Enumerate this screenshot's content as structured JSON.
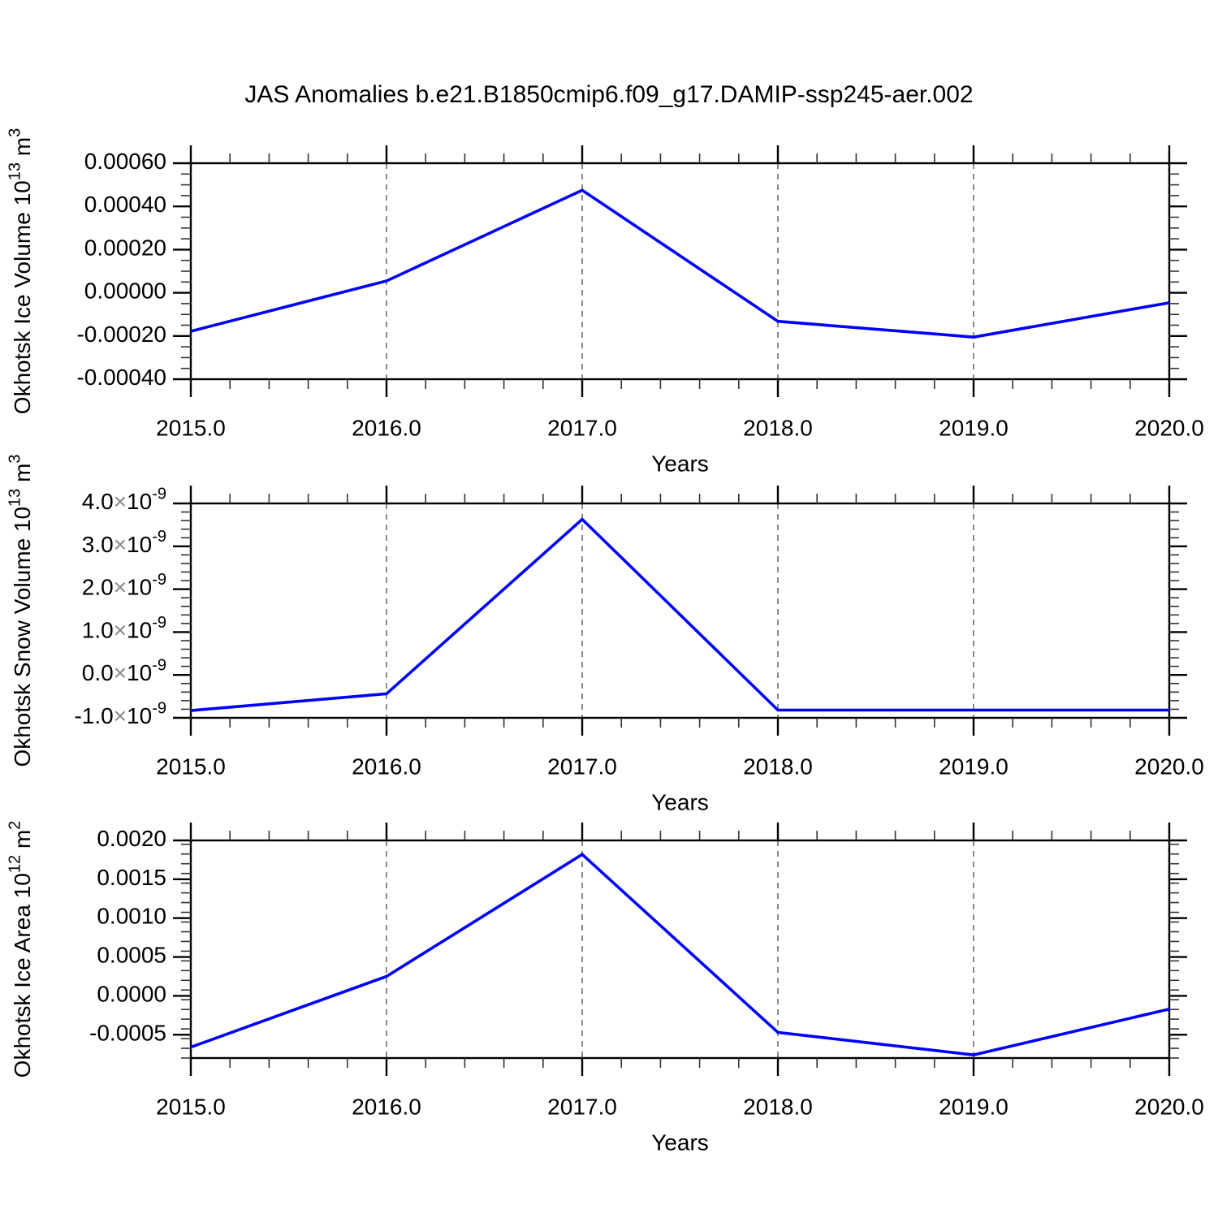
{
  "title": "JAS Anomalies b.e21.B1850cmip6.f09_g17.DAMIP-ssp245-aer.002",
  "colors": {
    "line": "#0000ff",
    "grid": "#808080",
    "frame": "#000000",
    "minor_tick": "#333333",
    "text": "#000000",
    "times_sign": "#888888"
  },
  "chart_data": [
    {
      "type": "line",
      "name": "okhotsk-ice-volume",
      "x": [
        2015.0,
        2016.0,
        2017.0,
        2018.0,
        2019.0,
        2020.0
      ],
      "values": [
        -0.000178,
        5.5e-05,
        0.000475,
        -0.000132,
        -0.000205,
        -4.6e-05
      ],
      "xlabel": "Years",
      "ylabel_parts": [
        {
          "t": "Okhotsk Ice Volume 10"
        },
        {
          "t": "13",
          "sup": true
        },
        {
          "t": " m"
        },
        {
          "t": "3",
          "sup": true
        }
      ],
      "xlim": [
        2015.0,
        2020.0
      ],
      "ylim": [
        -0.0004,
        0.0006
      ],
      "grid": "vertical-dashed",
      "gridlines_x": [
        2016.0,
        2017.0,
        2018.0,
        2019.0
      ],
      "legend": "none",
      "yticks": [
        {
          "v": 0.0006,
          "parts": [
            {
              "t": "0.00060"
            }
          ]
        },
        {
          "v": 0.0004,
          "parts": [
            {
              "t": "0.00040"
            }
          ]
        },
        {
          "v": 0.0002,
          "parts": [
            {
              "t": "0.00020"
            }
          ]
        },
        {
          "v": 0.0,
          "parts": [
            {
              "t": "0.00000"
            }
          ]
        },
        {
          "v": -0.0002,
          "parts": [
            {
              "t": "-0.00020"
            }
          ]
        },
        {
          "v": -0.0004,
          "parts": [
            {
              "t": "-0.00040"
            }
          ]
        }
      ],
      "yminor_step": 5e-05,
      "xticks": [
        {
          "v": 2015.0,
          "label": "2015.0"
        },
        {
          "v": 2016.0,
          "label": "2016.0"
        },
        {
          "v": 2017.0,
          "label": "2017.0"
        },
        {
          "v": 2018.0,
          "label": "2018.0"
        },
        {
          "v": 2019.0,
          "label": "2019.0"
        },
        {
          "v": 2020.0,
          "label": "2020.0"
        }
      ],
      "xminor_step": 0.2
    },
    {
      "type": "line",
      "name": "okhotsk-snow-volume",
      "x": [
        2015.0,
        2016.0,
        2017.0,
        2018.0,
        2019.0,
        2020.0
      ],
      "values": [
        -8.3e-10,
        -4.4e-10,
        3.63e-09,
        -8.2e-10,
        -8.2e-10,
        -8.2e-10
      ],
      "xlabel": "Years",
      "ylabel_parts": [
        {
          "t": "Okhotsk Snow Volume 10"
        },
        {
          "t": "13",
          "sup": true
        },
        {
          "t": " m"
        },
        {
          "t": "3",
          "sup": true
        }
      ],
      "xlim": [
        2015.0,
        2020.0
      ],
      "ylim": [
        -1e-09,
        4e-09
      ],
      "grid": "vertical-dashed",
      "gridlines_x": [
        2016.0,
        2017.0,
        2018.0,
        2019.0
      ],
      "legend": "none",
      "yticks": [
        {
          "v": 4e-09,
          "parts": [
            {
              "t": "4.0"
            },
            {
              "t": "×",
              "times": true
            },
            {
              "t": "10"
            },
            {
              "t": "-9",
              "sup": true
            }
          ]
        },
        {
          "v": 3e-09,
          "parts": [
            {
              "t": "3.0"
            },
            {
              "t": "×",
              "times": true
            },
            {
              "t": "10"
            },
            {
              "t": "-9",
              "sup": true
            }
          ]
        },
        {
          "v": 2e-09,
          "parts": [
            {
              "t": "2.0"
            },
            {
              "t": "×",
              "times": true
            },
            {
              "t": "10"
            },
            {
              "t": "-9",
              "sup": true
            }
          ]
        },
        {
          "v": 1e-09,
          "parts": [
            {
              "t": "1.0"
            },
            {
              "t": "×",
              "times": true
            },
            {
              "t": "10"
            },
            {
              "t": "-9",
              "sup": true
            }
          ]
        },
        {
          "v": 0.0,
          "parts": [
            {
              "t": "0.0"
            },
            {
              "t": "×",
              "times": true
            },
            {
              "t": "10"
            },
            {
              "t": "-9",
              "sup": true
            }
          ]
        },
        {
          "v": -1e-09,
          "parts": [
            {
              "t": "-1.0"
            },
            {
              "t": "×",
              "times": true
            },
            {
              "t": "10"
            },
            {
              "t": "-9",
              "sup": true
            }
          ]
        }
      ],
      "yminor_step": 2e-10,
      "xticks": [
        {
          "v": 2015.0,
          "label": "2015.0"
        },
        {
          "v": 2016.0,
          "label": "2016.0"
        },
        {
          "v": 2017.0,
          "label": "2017.0"
        },
        {
          "v": 2018.0,
          "label": "2018.0"
        },
        {
          "v": 2019.0,
          "label": "2019.0"
        },
        {
          "v": 2020.0,
          "label": "2020.0"
        }
      ],
      "xminor_step": 0.2
    },
    {
      "type": "line",
      "name": "okhotsk-ice-area",
      "x": [
        2015.0,
        2016.0,
        2017.0,
        2018.0,
        2019.0,
        2020.0
      ],
      "values": [
        -0.00066,
        0.00025,
        0.00182,
        -0.00047,
        -0.00076,
        -0.00017
      ],
      "xlabel": "Years",
      "ylabel_parts": [
        {
          "t": "Okhotsk Ice Area 10"
        },
        {
          "t": "12",
          "sup": true
        },
        {
          "t": " m"
        },
        {
          "t": "2",
          "sup": true
        }
      ],
      "xlim": [
        2015.0,
        2020.0
      ],
      "ylim": [
        -0.0008,
        0.002
      ],
      "grid": "vertical-dashed",
      "gridlines_x": [
        2016.0,
        2017.0,
        2018.0,
        2019.0
      ],
      "legend": "none",
      "yticks": [
        {
          "v": 0.002,
          "parts": [
            {
              "t": "0.0020"
            }
          ]
        },
        {
          "v": 0.0015,
          "parts": [
            {
              "t": "0.0015"
            }
          ]
        },
        {
          "v": 0.001,
          "parts": [
            {
              "t": "0.0010"
            }
          ]
        },
        {
          "v": 0.0005,
          "parts": [
            {
              "t": "0.0005"
            }
          ]
        },
        {
          "v": 0.0,
          "parts": [
            {
              "t": "0.0000"
            }
          ]
        },
        {
          "v": -0.0005,
          "parts": [
            {
              "t": "-0.0005"
            }
          ]
        }
      ],
      "yminor_step": 0.000125,
      "xticks": [
        {
          "v": 2015.0,
          "label": "2015.0"
        },
        {
          "v": 2016.0,
          "label": "2016.0"
        },
        {
          "v": 2017.0,
          "label": "2017.0"
        },
        {
          "v": 2018.0,
          "label": "2018.0"
        },
        {
          "v": 2019.0,
          "label": "2019.0"
        },
        {
          "v": 2020.0,
          "label": "2020.0"
        }
      ],
      "xminor_step": 0.2
    }
  ]
}
